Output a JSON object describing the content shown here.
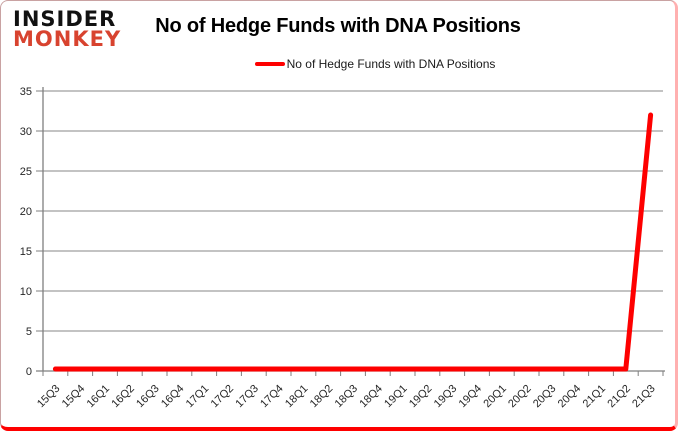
{
  "logo": {
    "line1": "INSIDER",
    "line2": "MONKEY",
    "line1_color": "#111111",
    "line2_color": "#d8432f"
  },
  "header": {
    "title": "No of Hedge Funds with DNA Positions"
  },
  "legend": {
    "label": "No of Hedge Funds with DNA Positions",
    "line_color": "#fe0000"
  },
  "chart_data": {
    "type": "line",
    "title": "No of Hedge Funds with DNA Positions",
    "categories": [
      "15Q3",
      "15Q4",
      "16Q1",
      "16Q2",
      "16Q3",
      "16Q4",
      "17Q1",
      "17Q2",
      "17Q3",
      "17Q4",
      "18Q1",
      "18Q2",
      "18Q3",
      "18Q4",
      "19Q1",
      "19Q2",
      "19Q3",
      "19Q4",
      "20Q1",
      "20Q2",
      "20Q3",
      "20Q4",
      "21Q1",
      "21Q2",
      "21Q3"
    ],
    "series": [
      {
        "name": "No of Hedge Funds with DNA Positions",
        "color": "#fe0000",
        "values": [
          0,
          0,
          0,
          0,
          0,
          0,
          0,
          0,
          0,
          0,
          0,
          0,
          0,
          0,
          0,
          0,
          0,
          0,
          0,
          0,
          0,
          0,
          0,
          0,
          32
        ]
      }
    ],
    "xlabel": "",
    "ylabel": "",
    "ylim": [
      0,
      35
    ],
    "yticks": [
      0,
      5,
      10,
      15,
      20,
      25,
      30,
      35
    ],
    "grid": true,
    "legend_position": "top",
    "gridline_color": "#878787",
    "axis_color": "#7f7f7f"
  }
}
